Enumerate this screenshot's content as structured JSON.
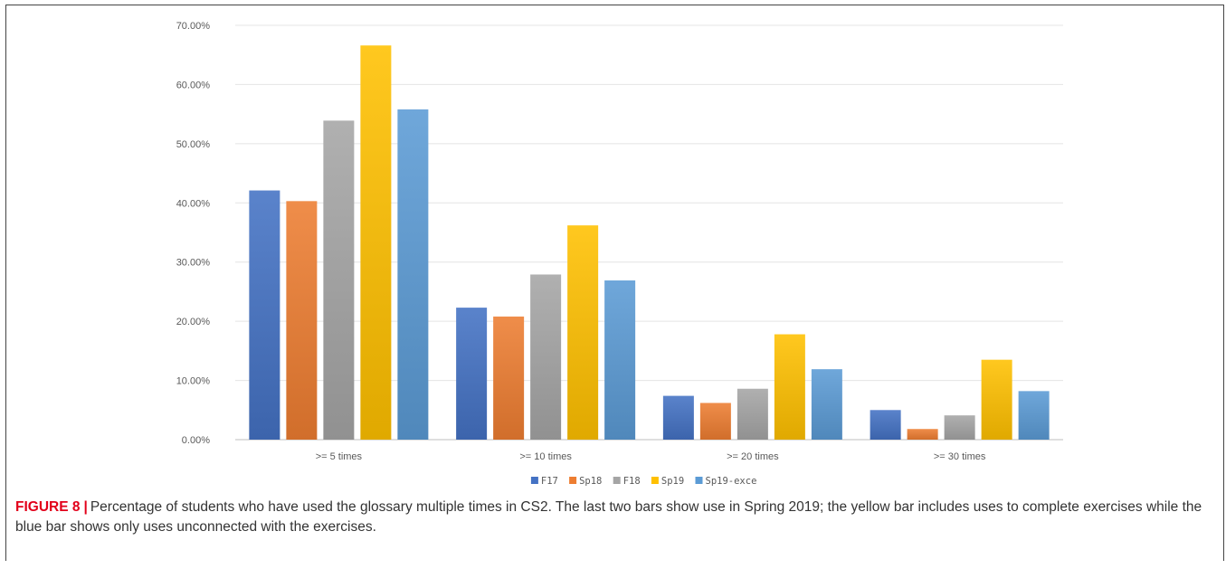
{
  "caption": {
    "label": "FIGURE 8",
    "separator": "|",
    "text": "Percentage of students who have used the glossary multiple times in CS2. The last two bars show use in Spring 2019; the yellow bar includes uses to complete exercises while the blue bar shows only uses unconnected with the exercises."
  },
  "chart_data": {
    "type": "bar",
    "title": "",
    "xlabel": "",
    "ylabel": "",
    "ylim": [
      0,
      70
    ],
    "yticks": [
      "0.00%",
      "10.00%",
      "20.00%",
      "30.00%",
      "40.00%",
      "50.00%",
      "60.00%",
      "70.00%"
    ],
    "grid": true,
    "legend_position": "bottom",
    "categories": [
      ">= 5 times",
      ">= 10 times",
      ">= 20 times",
      ">= 30 times"
    ],
    "series": [
      {
        "name": "F17",
        "color": "#4472C4",
        "values": [
          42.1,
          22.3,
          7.4,
          5.0
        ]
      },
      {
        "name": "Sp18",
        "color": "#ED7D31",
        "values": [
          40.3,
          20.8,
          6.2,
          1.8
        ]
      },
      {
        "name": "F18",
        "color": "#A5A5A5",
        "values": [
          53.9,
          27.9,
          8.6,
          4.1
        ]
      },
      {
        "name": "Sp19",
        "color": "#FFC000",
        "values": [
          66.6,
          36.2,
          17.8,
          13.5
        ]
      },
      {
        "name": "Sp19-exce",
        "color": "#5B9BD5",
        "values": [
          55.8,
          26.9,
          11.9,
          8.2
        ]
      }
    ]
  }
}
